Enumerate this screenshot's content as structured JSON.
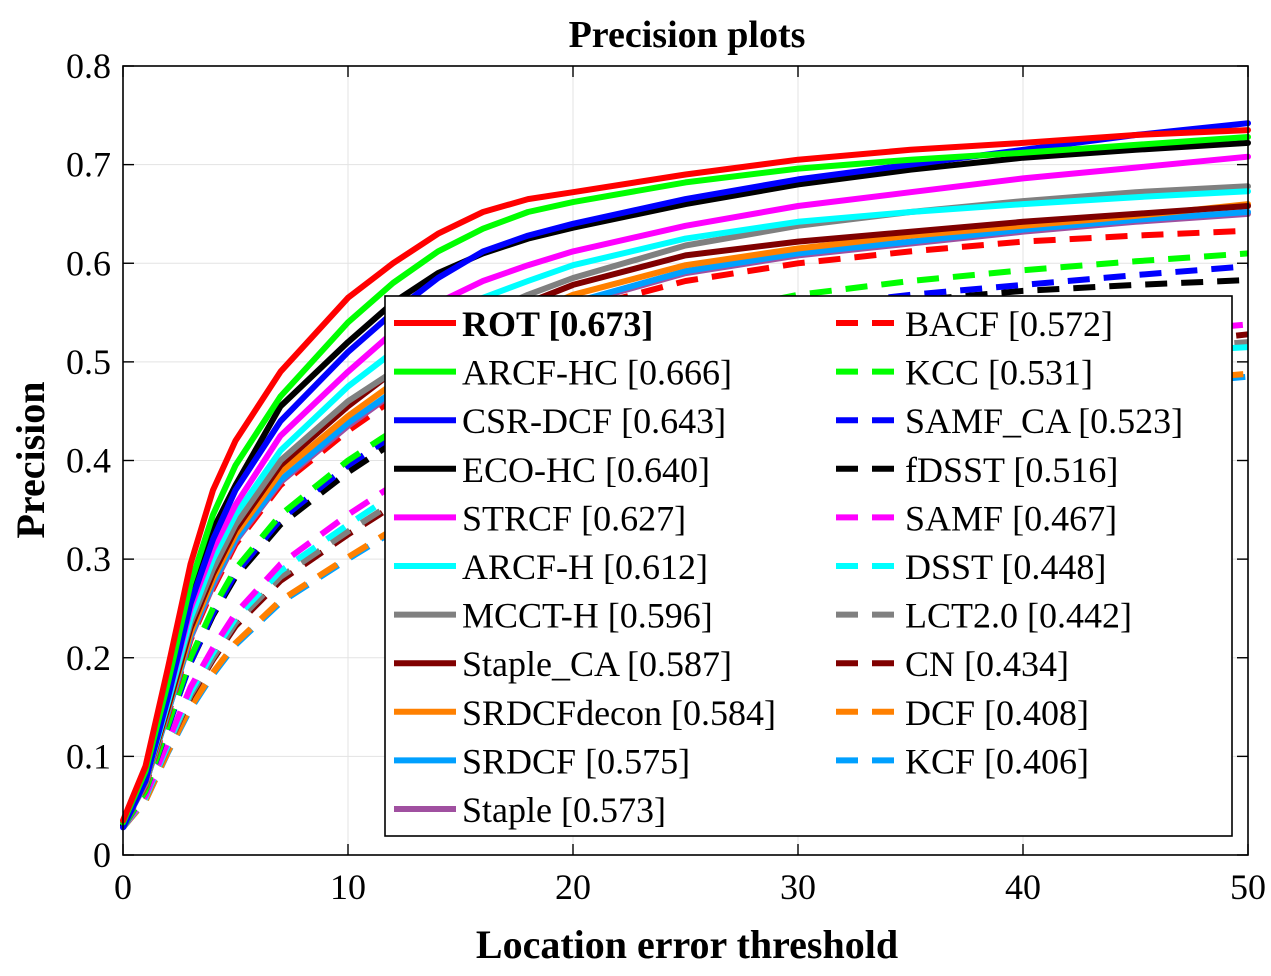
{
  "chart_data": {
    "type": "line",
    "title": "Precision plots",
    "xlabel": "Location error threshold",
    "ylabel": "Precision",
    "xlim": [
      0,
      50
    ],
    "ylim": [
      0,
      0.8
    ],
    "xticks": [
      "0",
      "10",
      "20",
      "30",
      "40",
      "50"
    ],
    "yticks": [
      "0",
      "0.1",
      "0.2",
      "0.3",
      "0.4",
      "0.5",
      "0.6",
      "0.7",
      "0.8"
    ],
    "grid": true,
    "legend_location": "lower-right",
    "x": [
      0,
      1,
      2,
      3,
      4,
      5,
      7,
      10,
      12,
      14,
      16,
      18,
      20,
      25,
      30,
      35,
      40,
      45,
      50
    ],
    "series": [
      {
        "name": "ROT",
        "score": "0.673",
        "color": "#ff0000",
        "dash": false,
        "bold": true,
        "values": [
          0.035,
          0.09,
          0.19,
          0.295,
          0.37,
          0.42,
          0.49,
          0.565,
          0.6,
          0.63,
          0.652,
          0.665,
          0.672,
          0.69,
          0.705,
          0.715,
          0.722,
          0.73,
          0.735
        ]
      },
      {
        "name": "ARCF-HC",
        "score": "0.666",
        "color": "#00ff00",
        "dash": false,
        "bold": false,
        "values": [
          0.033,
          0.085,
          0.175,
          0.275,
          0.345,
          0.395,
          0.465,
          0.54,
          0.58,
          0.612,
          0.635,
          0.652,
          0.662,
          0.682,
          0.696,
          0.705,
          0.712,
          0.72,
          0.728
        ]
      },
      {
        "name": "CSR-DCF",
        "score": "0.643",
        "color": "#0000ff",
        "dash": false,
        "bold": false,
        "values": [
          0.028,
          0.075,
          0.16,
          0.255,
          0.32,
          0.37,
          0.44,
          0.51,
          0.55,
          0.585,
          0.612,
          0.628,
          0.64,
          0.665,
          0.685,
          0.7,
          0.715,
          0.73,
          0.742
        ]
      },
      {
        "name": "ECO-HC",
        "score": "0.640",
        "color": "#000000",
        "dash": false,
        "bold": false,
        "values": [
          0.03,
          0.078,
          0.165,
          0.262,
          0.33,
          0.375,
          0.455,
          0.52,
          0.56,
          0.59,
          0.61,
          0.625,
          0.636,
          0.66,
          0.68,
          0.695,
          0.707,
          0.715,
          0.722
        ]
      },
      {
        "name": "STRCF",
        "score": "0.627",
        "color": "#ff00ff",
        "dash": false,
        "bold": false,
        "values": [
          0.03,
          0.078,
          0.16,
          0.25,
          0.31,
          0.355,
          0.425,
          0.49,
          0.53,
          0.56,
          0.582,
          0.598,
          0.612,
          0.638,
          0.658,
          0.672,
          0.686,
          0.697,
          0.708
        ]
      },
      {
        "name": "ARCF-H",
        "score": "0.612",
        "color": "#00ffff",
        "dash": false,
        "bold": false,
        "values": [
          0.03,
          0.075,
          0.155,
          0.24,
          0.3,
          0.345,
          0.41,
          0.475,
          0.51,
          0.54,
          0.565,
          0.582,
          0.598,
          0.625,
          0.642,
          0.652,
          0.66,
          0.667,
          0.673
        ]
      },
      {
        "name": "MCCT-H",
        "score": "0.596",
        "color": "#808080",
        "dash": false,
        "bold": false,
        "values": [
          0.03,
          0.075,
          0.155,
          0.235,
          0.29,
          0.335,
          0.4,
          0.46,
          0.49,
          0.52,
          0.548,
          0.568,
          0.585,
          0.618,
          0.638,
          0.652,
          0.663,
          0.672,
          0.678
        ]
      },
      {
        "name": "Staple_CA",
        "score": "0.587",
        "color": "#800000",
        "dash": false,
        "bold": false,
        "values": [
          0.03,
          0.075,
          0.15,
          0.23,
          0.285,
          0.33,
          0.395,
          0.455,
          0.49,
          0.518,
          0.54,
          0.56,
          0.578,
          0.608,
          0.622,
          0.632,
          0.642,
          0.65,
          0.658
        ]
      },
      {
        "name": "SRDCFdecon",
        "score": "0.584",
        "color": "#ff8000",
        "dash": false,
        "bold": false,
        "values": [
          0.03,
          0.073,
          0.148,
          0.225,
          0.28,
          0.325,
          0.388,
          0.445,
          0.478,
          0.505,
          0.528,
          0.548,
          0.568,
          0.598,
          0.615,
          0.628,
          0.638,
          0.648,
          0.66
        ]
      },
      {
        "name": "SRDCF",
        "score": "0.575",
        "color": "#00a0ff",
        "dash": false,
        "bold": false,
        "values": [
          0.03,
          0.072,
          0.145,
          0.222,
          0.276,
          0.32,
          0.38,
          0.438,
          0.47,
          0.498,
          0.522,
          0.542,
          0.56,
          0.592,
          0.61,
          0.622,
          0.634,
          0.644,
          0.652
        ]
      },
      {
        "name": "Staple",
        "score": "0.573",
        "color": "#a050a0",
        "dash": false,
        "bold": false,
        "values": [
          0.03,
          0.072,
          0.145,
          0.22,
          0.273,
          0.318,
          0.378,
          0.435,
          0.468,
          0.496,
          0.52,
          0.54,
          0.558,
          0.59,
          0.608,
          0.62,
          0.632,
          0.642,
          0.65
        ]
      },
      {
        "name": "BACF",
        "score": "0.572",
        "color": "#ff0000",
        "dash": true,
        "bold": false,
        "values": [
          0.03,
          0.07,
          0.142,
          0.218,
          0.27,
          0.315,
          0.375,
          0.43,
          0.462,
          0.49,
          0.515,
          0.535,
          0.552,
          0.582,
          0.6,
          0.612,
          0.622,
          0.628,
          0.633
        ]
      },
      {
        "name": "KCC",
        "score": "0.531",
        "color": "#00ff00",
        "dash": true,
        "bold": false,
        "values": [
          0.028,
          0.065,
          0.132,
          0.2,
          0.25,
          0.29,
          0.345,
          0.4,
          0.43,
          0.458,
          0.48,
          0.498,
          0.512,
          0.545,
          0.568,
          0.582,
          0.593,
          0.602,
          0.61
        ]
      },
      {
        "name": "SAMF_CA",
        "score": "0.523",
        "color": "#0000ff",
        "dash": true,
        "bold": false,
        "values": [
          0.028,
          0.065,
          0.13,
          0.195,
          0.245,
          0.285,
          0.34,
          0.395,
          0.425,
          0.45,
          0.472,
          0.49,
          0.505,
          0.535,
          0.555,
          0.568,
          0.578,
          0.588,
          0.597
        ]
      },
      {
        "name": "fDSST",
        "score": "0.516",
        "color": "#000000",
        "dash": true,
        "bold": false,
        "values": [
          0.028,
          0.065,
          0.13,
          0.195,
          0.243,
          0.282,
          0.335,
          0.388,
          0.418,
          0.443,
          0.464,
          0.482,
          0.497,
          0.528,
          0.548,
          0.562,
          0.572,
          0.578,
          0.583
        ]
      },
      {
        "name": "SAMF",
        "score": "0.467",
        "color": "#ff00ff",
        "dash": true,
        "bold": false,
        "values": [
          0.028,
          0.06,
          0.115,
          0.17,
          0.21,
          0.245,
          0.295,
          0.345,
          0.375,
          0.398,
          0.418,
          0.434,
          0.448,
          0.475,
          0.495,
          0.508,
          0.518,
          0.528,
          0.538
        ]
      },
      {
        "name": "DSST",
        "score": "0.448",
        "color": "#00ffff",
        "dash": true,
        "bold": false,
        "values": [
          0.028,
          0.058,
          0.112,
          0.165,
          0.205,
          0.24,
          0.288,
          0.335,
          0.365,
          0.388,
          0.408,
          0.423,
          0.435,
          0.46,
          0.478,
          0.49,
          0.5,
          0.508,
          0.515
        ]
      },
      {
        "name": "LCT2.0",
        "score": "0.442",
        "color": "#808080",
        "dash": true,
        "bold": false,
        "values": [
          0.028,
          0.058,
          0.11,
          0.162,
          0.2,
          0.235,
          0.282,
          0.328,
          0.357,
          0.38,
          0.4,
          0.416,
          0.43,
          0.458,
          0.478,
          0.492,
          0.503,
          0.512,
          0.52
        ]
      },
      {
        "name": "CN",
        "score": "0.434",
        "color": "#800000",
        "dash": true,
        "bold": false,
        "values": [
          0.028,
          0.058,
          0.11,
          0.16,
          0.198,
          0.232,
          0.278,
          0.325,
          0.354,
          0.377,
          0.397,
          0.413,
          0.426,
          0.455,
          0.475,
          0.49,
          0.502,
          0.515,
          0.528
        ]
      },
      {
        "name": "DCF",
        "score": "0.408",
        "color": "#ff8000",
        "dash": true,
        "bold": false,
        "values": [
          0.028,
          0.055,
          0.105,
          0.15,
          0.185,
          0.215,
          0.258,
          0.302,
          0.33,
          0.352,
          0.372,
          0.388,
          0.4,
          0.425,
          0.443,
          0.457,
          0.468,
          0.478,
          0.488
        ]
      },
      {
        "name": "KCF",
        "score": "0.406",
        "color": "#00a0ff",
        "dash": true,
        "bold": false,
        "values": [
          0.028,
          0.055,
          0.104,
          0.148,
          0.183,
          0.213,
          0.256,
          0.3,
          0.328,
          0.35,
          0.37,
          0.386,
          0.398,
          0.422,
          0.44,
          0.454,
          0.465,
          0.475,
          0.485
        ]
      }
    ]
  }
}
